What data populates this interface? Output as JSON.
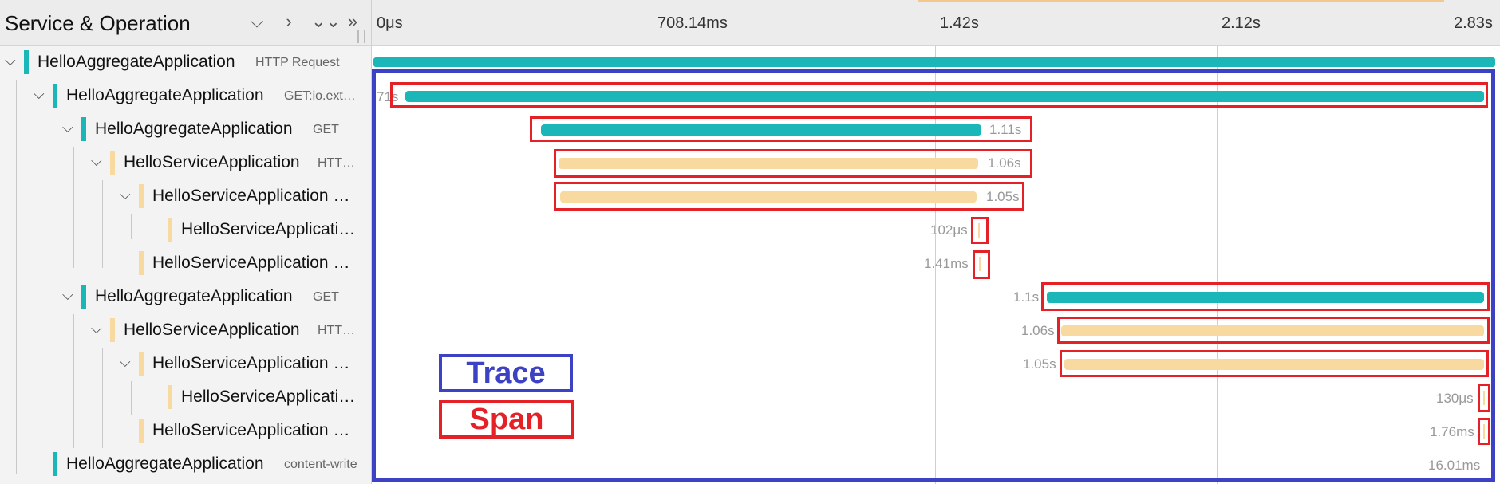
{
  "header": {
    "title": "Service & Operation",
    "tools": [
      "⌵",
      "›",
      "⌄⌄",
      "»"
    ],
    "ticks": [
      "0μs",
      "708.14ms",
      "1.42s",
      "2.12s",
      "2.83s"
    ]
  },
  "colors": {
    "aggregate": "#1ab6b8",
    "service": "#f8d9a0",
    "trace_box": "#3d42c4",
    "span_box": "#e32127"
  },
  "rows": [
    {
      "name": "HelloAggregateApplication",
      "op": "HTTP Request",
      "duration": ""
    },
    {
      "name": "HelloAggregateApplication",
      "op": "GET:io.ext…",
      "duration": "71s"
    },
    {
      "name": "HelloAggregateApplication",
      "op": "GET",
      "duration": "1.11s"
    },
    {
      "name": "HelloServiceApplication",
      "op": "HTT…",
      "duration": "1.06s"
    },
    {
      "name": "HelloServiceApplication …",
      "op": "",
      "duration": "1.05s"
    },
    {
      "name": "HelloServiceApplicati…",
      "op": "",
      "duration": "102μs"
    },
    {
      "name": "HelloServiceApplication …",
      "op": "",
      "duration": "1.41ms"
    },
    {
      "name": "HelloAggregateApplication",
      "op": "GET",
      "duration": "1.1s"
    },
    {
      "name": "HelloServiceApplication",
      "op": "HTT…",
      "duration": "1.06s"
    },
    {
      "name": "HelloServiceApplication …",
      "op": "",
      "duration": "1.05s"
    },
    {
      "name": "HelloServiceApplicati…",
      "op": "",
      "duration": "130μs"
    },
    {
      "name": "HelloServiceApplication …",
      "op": "",
      "duration": "1.76ms"
    },
    {
      "name": "HelloAggregateApplication",
      "op": "content-write",
      "duration": "16.01ms"
    }
  ],
  "legend": {
    "trace": "Trace",
    "span": "Span"
  }
}
